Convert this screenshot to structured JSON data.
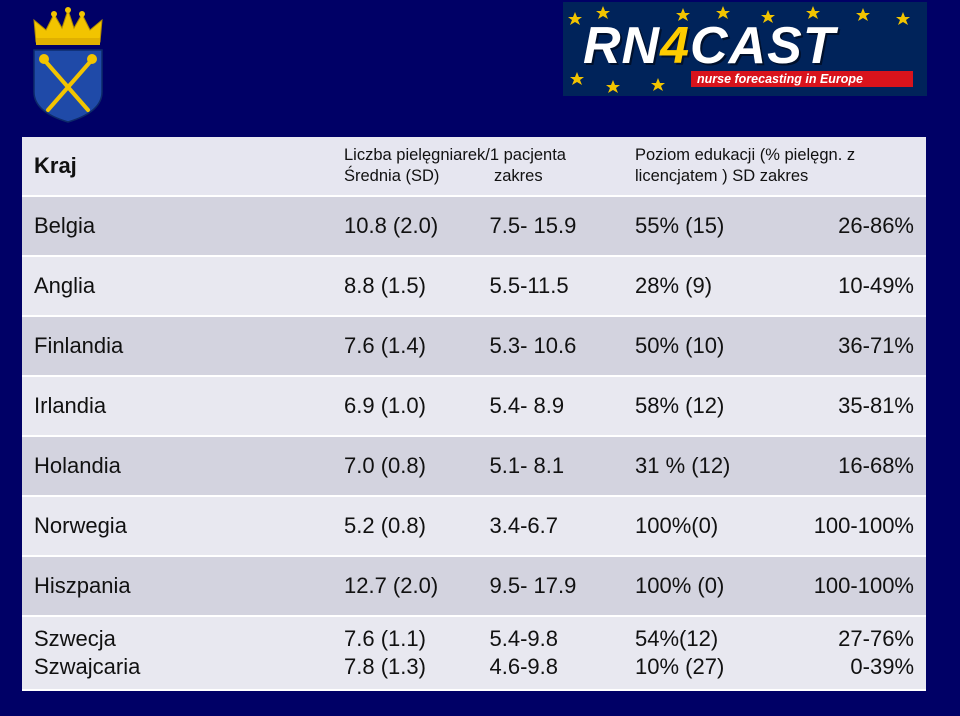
{
  "logo": {
    "brand_text": "RN4CAST",
    "tagline": "nurse forecasting in Europe"
  },
  "table": {
    "header": {
      "col1": "Kraj",
      "col2_line1": "Liczba pielęgniarek/1 pacjenta",
      "col2_line2_a": "Średnia (SD)",
      "col2_line2_b": "zakres",
      "col4_line1": "Poziom edukacji  (% pielęgn. z",
      "col4_line2": "licencjatem ) SD zakres"
    },
    "rows": [
      {
        "country": "Belgia",
        "mean_sd": "10.8 (2.0)",
        "range": "7.5- 15.9",
        "edu": "55%  (15)",
        "edu_range": "26-86%"
      },
      {
        "country": "Anglia",
        "mean_sd": "8.8 (1.5)",
        "range": "5.5-11.5",
        "edu": "28% (9)",
        "edu_range": "10-49%"
      },
      {
        "country": "Finlandia",
        "mean_sd": "7.6 (1.4)",
        "range": "5.3- 10.6",
        "edu": "50% (10)",
        "edu_range": "36-71%"
      },
      {
        "country": "Irlandia",
        "mean_sd": "6.9 (1.0)",
        "range": "5.4- 8.9",
        "edu": "58% (12)",
        "edu_range": "35-81%"
      },
      {
        "country": "Holandia",
        "mean_sd": "7.0 (0.8)",
        "range": "5.1- 8.1",
        "edu": "31 % (12)",
        "edu_range": "16-68%"
      },
      {
        "country": "Norwegia",
        "mean_sd": "5.2 (0.8)",
        "range": "3.4-6.7",
        "edu": "100%(0)",
        "edu_range": "100-100%"
      },
      {
        "country": "Hiszpania",
        "mean_sd": "12.7 (2.0)",
        "range": "9.5- 17.9",
        "edu": "100% (0)",
        "edu_range": "100-100%"
      }
    ],
    "last_row": {
      "country_a": "Szwecja",
      "country_b": "Szwajcaria",
      "mean_sd_a": "7.6 (1.1)",
      "mean_sd_b": "7.8 (1.3)",
      "range_a": "5.4-9.8",
      "range_b": "4.6-9.8",
      "edu_a": "54%(12)",
      "edu_b": "10% (27)",
      "edu_range_a": "27-76%",
      "edu_range_b": "0-39%"
    }
  },
  "colors": {
    "background": "#000066",
    "row_light": "#e8e8f0",
    "row_dark": "#d3d3df",
    "crest_blue": "#1f4aa8",
    "crest_gold": "#f2c400",
    "tagline_red": "#d8131c"
  }
}
